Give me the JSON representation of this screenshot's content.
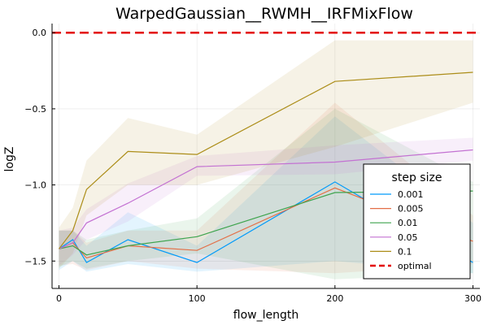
{
  "chart_data": {
    "type": "line",
    "title": "WarpedGaussian__RWMH__IRFMixFlow",
    "xlabel": "flow_length",
    "ylabel": "logZ",
    "xlim": [
      -5,
      305
    ],
    "ylim": [
      -1.68,
      0.06
    ],
    "xticks": [
      0,
      100,
      200,
      300
    ],
    "yticks": [
      0.0,
      -0.5,
      -1.0,
      -1.5
    ],
    "xtick_labels": [
      "0",
      "100",
      "200",
      "300"
    ],
    "ytick_labels": [
      "0.0",
      "−0.5",
      "−1.0",
      "−1.5"
    ],
    "grid": true,
    "legend": {
      "title": "step size",
      "placement": "bottom-right"
    },
    "x": [
      0,
      10,
      20,
      50,
      100,
      200,
      300
    ],
    "series": [
      {
        "name": "0.001",
        "color": "#009AFA",
        "values": [
          -1.42,
          -1.36,
          -1.51,
          -1.36,
          -1.51,
          -0.98,
          -1.51
        ],
        "lower": [
          -1.56,
          -1.5,
          -1.57,
          -1.52,
          -1.57,
          -1.5,
          -1.58
        ],
        "upper": [
          -1.3,
          -1.3,
          -1.4,
          -1.18,
          -1.4,
          -0.55,
          -1.25
        ]
      },
      {
        "name": "0.005",
        "color": "#E36F47",
        "values": [
          -1.42,
          -1.38,
          -1.48,
          -1.4,
          -1.43,
          -1.02,
          -1.37
        ],
        "lower": [
          -1.53,
          -1.52,
          -1.56,
          -1.5,
          -1.55,
          -1.58,
          -1.52
        ],
        "upper": [
          -1.3,
          -1.3,
          -1.38,
          -1.3,
          -1.3,
          -0.46,
          -1.2
        ]
      },
      {
        "name": "0.01",
        "color": "#3EA44E",
        "values": [
          -1.42,
          -1.4,
          -1.46,
          -1.4,
          -1.34,
          -1.05,
          -1.04
        ],
        "lower": [
          -1.54,
          -1.5,
          -1.55,
          -1.5,
          -1.45,
          -1.62,
          -1.58
        ],
        "upper": [
          -1.3,
          -1.3,
          -1.36,
          -1.3,
          -1.22,
          -0.5,
          -0.98
        ]
      },
      {
        "name": "0.05",
        "color": "#C371D2",
        "values": [
          -1.42,
          -1.38,
          -1.25,
          -1.12,
          -0.88,
          -0.85,
          -0.77
        ],
        "lower": [
          -1.53,
          -1.46,
          -1.36,
          -1.24,
          -0.94,
          -0.93,
          -0.84
        ],
        "upper": [
          -1.3,
          -1.28,
          -1.16,
          -0.99,
          -0.81,
          -0.74,
          -0.69
        ]
      },
      {
        "name": "0.1",
        "color": "#AC8D18",
        "values": [
          -1.42,
          -1.3,
          -1.03,
          -0.78,
          -0.8,
          -0.32,
          -0.26
        ],
        "lower": [
          -1.55,
          -1.45,
          -1.2,
          -1.0,
          -1.0,
          -0.75,
          -0.46
        ],
        "upper": [
          -1.28,
          -1.15,
          -0.84,
          -0.56,
          -0.67,
          -0.05,
          -0.05
        ]
      }
    ],
    "reference_line": {
      "name": "optimal",
      "value": 0.0,
      "color": "#E30000",
      "style": "dashed"
    }
  }
}
